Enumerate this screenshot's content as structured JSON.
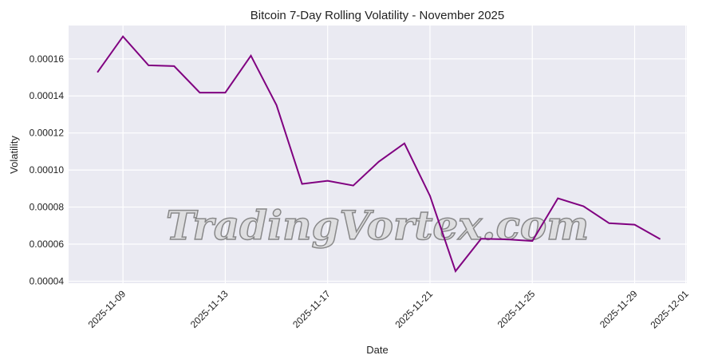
{
  "watermark": "TradingVortex.com",
  "chart_data": {
    "type": "line",
    "title": "Bitcoin 7-Day Rolling Volatility - November 2025",
    "xlabel": "Date",
    "ylabel": "Volatility",
    "x": [
      "2025-11-08",
      "2025-11-09",
      "2025-11-10",
      "2025-11-11",
      "2025-11-12",
      "2025-11-13",
      "2025-11-14",
      "2025-11-15",
      "2025-11-16",
      "2025-11-17",
      "2025-11-18",
      "2025-11-19",
      "2025-11-20",
      "2025-11-21",
      "2025-11-22",
      "2025-11-23",
      "2025-11-24",
      "2025-11-25",
      "2025-11-26",
      "2025-11-27",
      "2025-11-28",
      "2025-11-29",
      "2025-11-30"
    ],
    "series": [
      {
        "color": "#800080",
        "values": [
          0.0001527,
          0.0001721,
          0.0001565,
          0.0001561,
          0.0001418,
          0.0001418,
          0.0001617,
          0.000135,
          9.25e-05,
          9.42e-05,
          9.16e-05,
          0.0001045,
          0.0001144,
          8.6e-05,
          4.54e-05,
          6.29e-05,
          6.26e-05,
          6.17e-05,
          8.47e-05,
          8.04e-05,
          7.13e-05,
          7.05e-05,
          6.27e-05
        ]
      }
    ],
    "xticks": [
      "2025-11-09",
      "2025-11-13",
      "2025-11-17",
      "2025-11-21",
      "2025-11-25",
      "2025-11-29",
      "2025-12-01"
    ],
    "yticks": [
      4e-05,
      6e-05,
      8e-05,
      0.0001,
      0.00012,
      0.00014,
      0.00016
    ],
    "ytick_labels": [
      "0.00004",
      "0.00006",
      "0.00008",
      "0.00010",
      "0.00012",
      "0.00014",
      "0.00016"
    ],
    "xlim": [
      "2025-11-06T21:00",
      "2025-12-01T01:00"
    ],
    "ylim": [
      3.89e-05,
      0.000178
    ],
    "grid": true,
    "background": "#eaeaf2"
  }
}
